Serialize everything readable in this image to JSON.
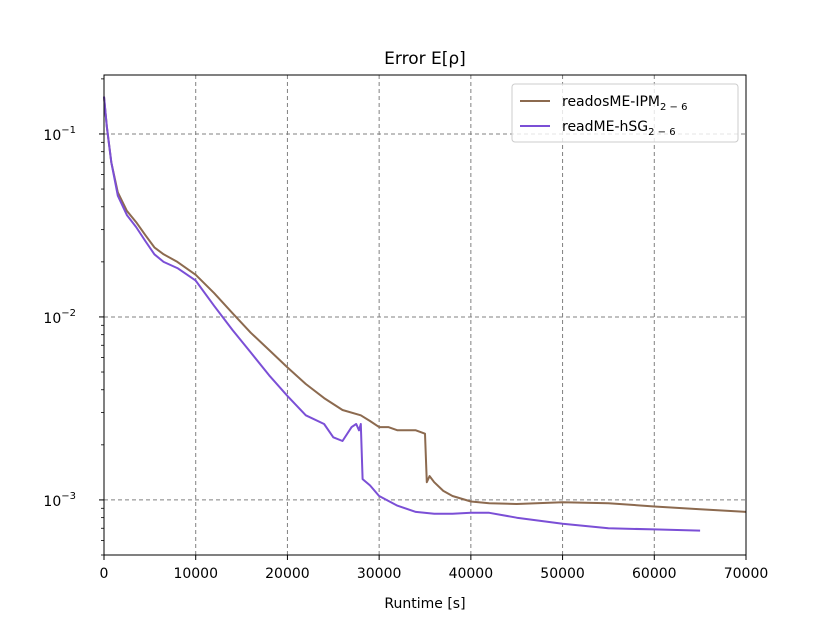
{
  "chart_data": {
    "type": "line",
    "title": "Error E[ρ]",
    "xlabel": "Runtime [s]",
    "ylabel": "",
    "xlim": [
      0,
      70000
    ],
    "ylim": [
      0.0005,
      0.21
    ],
    "yscale": "log",
    "grid": true,
    "legend_position": "top-right",
    "x_ticks": [
      "0",
      "10000",
      "20000",
      "30000",
      "40000",
      "50000",
      "60000",
      "70000"
    ],
    "y_ticks": [
      {
        "base": "10",
        "exp": "−3",
        "value": 0.001
      },
      {
        "base": "10",
        "exp": "−2",
        "value": 0.01
      },
      {
        "base": "10",
        "exp": "−1",
        "value": 0.1
      }
    ],
    "series": [
      {
        "name": "readosME-IPM",
        "name_sub": "2 − 6",
        "color": "#8c6a4f",
        "x": [
          0,
          300,
          800,
          1500,
          2500,
          3500,
          4500,
          5500,
          6500,
          8000,
          10000,
          12000,
          14000,
          16000,
          18000,
          20000,
          22000,
          24000,
          26000,
          28000,
          29000,
          30000,
          31000,
          32000,
          33000,
          34000,
          35000,
          35200,
          35500,
          36000,
          37000,
          38000,
          40000,
          42000,
          45000,
          50000,
          55000,
          60000,
          65000,
          70000
        ],
        "y": [
          0.16,
          0.11,
          0.07,
          0.048,
          0.038,
          0.033,
          0.028,
          0.024,
          0.022,
          0.02,
          0.017,
          0.0135,
          0.0105,
          0.0082,
          0.0066,
          0.0053,
          0.0043,
          0.0036,
          0.0031,
          0.0029,
          0.0027,
          0.0025,
          0.0025,
          0.0024,
          0.0024,
          0.0024,
          0.0023,
          0.00125,
          0.00135,
          0.00125,
          0.00112,
          0.00105,
          0.00098,
          0.00096,
          0.00095,
          0.00097,
          0.00096,
          0.00092,
          0.00089,
          0.00086
        ]
      },
      {
        "name": "readME-hSG",
        "name_sub": "2 − 6",
        "color": "#7b4fd6",
        "x": [
          0,
          300,
          800,
          1500,
          2500,
          3500,
          4500,
          5500,
          6500,
          8000,
          10000,
          12000,
          14000,
          16000,
          18000,
          20000,
          22000,
          24000,
          25000,
          26000,
          27000,
          27500,
          27800,
          28000,
          28200,
          29000,
          30000,
          32000,
          34000,
          36000,
          38000,
          40000,
          42000,
          45000,
          50000,
          55000,
          60000,
          65000
        ],
        "y": [
          0.16,
          0.11,
          0.07,
          0.046,
          0.036,
          0.031,
          0.026,
          0.022,
          0.02,
          0.0185,
          0.0158,
          0.0115,
          0.0085,
          0.0064,
          0.0048,
          0.0037,
          0.0029,
          0.0026,
          0.0022,
          0.0021,
          0.0025,
          0.0026,
          0.0024,
          0.0026,
          0.0013,
          0.0012,
          0.00105,
          0.00093,
          0.00086,
          0.00084,
          0.00084,
          0.00085,
          0.00085,
          0.0008,
          0.00074,
          0.0007,
          0.00069,
          0.00068
        ]
      }
    ]
  }
}
